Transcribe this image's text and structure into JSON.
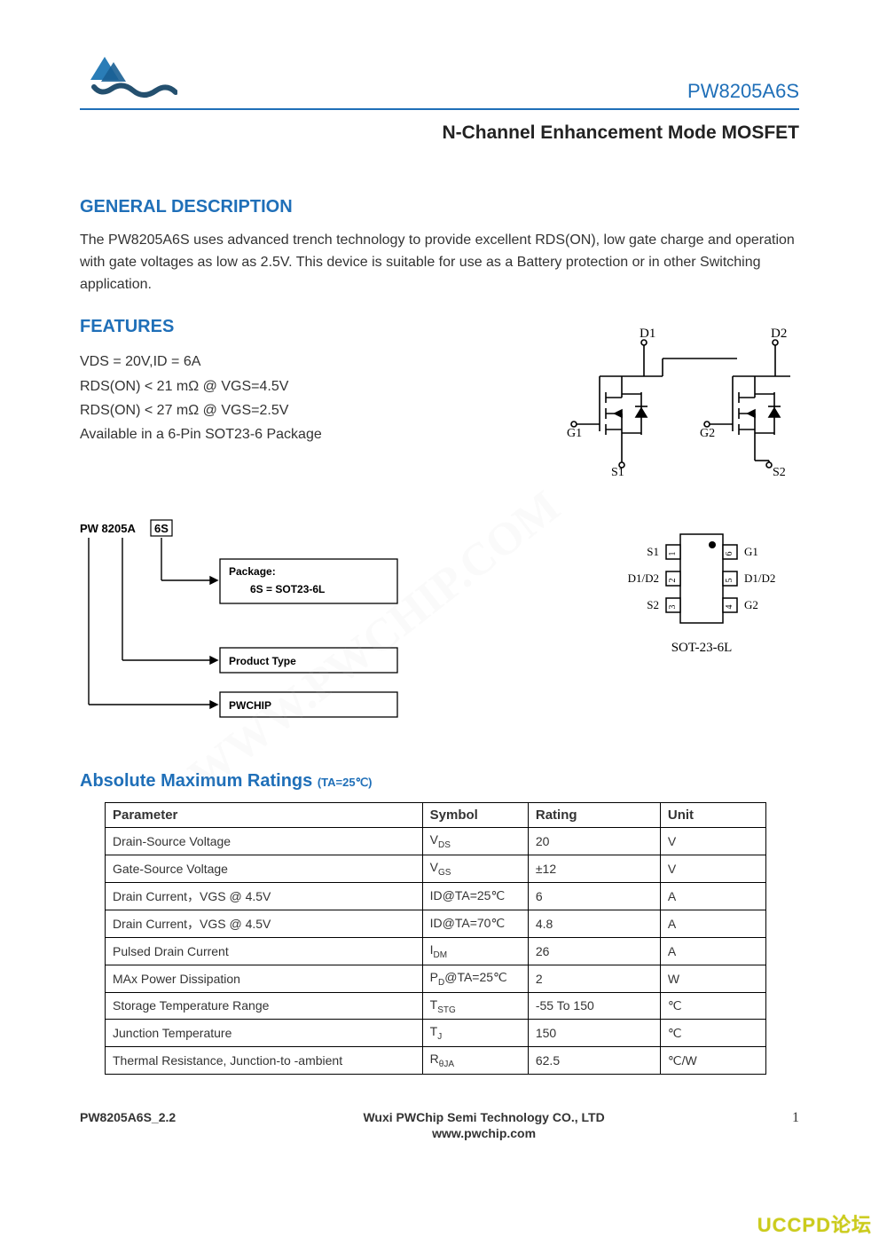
{
  "header": {
    "part_number": "PW8205A6S",
    "logo_color_1": "#2a7db7",
    "logo_color_2": "#24506f"
  },
  "title": "N-Channel Enhancement Mode MOSFET",
  "general_description": {
    "heading": "GENERAL DESCRIPTION",
    "text": "The PW8205A6S uses advanced trench technology to provide excellent RDS(ON), low gate charge and operation with gate voltages as low as 2.5V. This device is suitable for use as a Battery protection or in other Switching application."
  },
  "features": {
    "heading": "FEATURES",
    "items": [
      "VDS = 20V,ID = 6A",
      "RDS(ON) < 21 mΩ @ VGS=4.5V",
      "RDS(ON) < 27 mΩ @ VGS=2.5V",
      "Available in a 6-Pin SOT23-6 Package"
    ]
  },
  "schematic": {
    "labels": {
      "d1": "D1",
      "d2": "D2",
      "g1": "G1",
      "g2": "G2",
      "s1": "S1",
      "s2": "S2"
    },
    "line_color": "#000000",
    "pin_circle_fill": "#ffffff",
    "pin_circle_stroke": "#000000"
  },
  "ordering": {
    "title_prefix": "PW 8205A",
    "title_suffix": "6S",
    "package_label": "Package:",
    "package_value": "6S = SOT23-6L",
    "product_type_label": "Product Type",
    "pwchip_label": "PWCHIP",
    "box_border_color": "#000000"
  },
  "package_pinout": {
    "left_pins": [
      {
        "num": "1",
        "label": "S1"
      },
      {
        "num": "2",
        "label": "D1/D2"
      },
      {
        "num": "3",
        "label": "S2"
      }
    ],
    "right_pins": [
      {
        "num": "6",
        "label": "G1"
      },
      {
        "num": "5",
        "label": "D1/D2"
      },
      {
        "num": "4",
        "label": "G2"
      }
    ],
    "footprint_label": "SOT-23-6L",
    "outline_color": "#000000"
  },
  "abs_max": {
    "heading": "Absolute Maximum Ratings",
    "conditions": "(TA=25℃)",
    "columns": [
      "Parameter",
      "Symbol",
      "Rating",
      "Unit"
    ],
    "rows": [
      {
        "param": "Drain-Source Voltage",
        "symbol_main": "V",
        "symbol_sub": "DS",
        "rating": "20",
        "unit": "V"
      },
      {
        "param": "Gate-Source Voltage",
        "symbol_main": "V",
        "symbol_sub": "GS",
        "rating": "±12",
        "unit": "V"
      },
      {
        "param": "Drain Current，VGS @ 4.5V",
        "symbol_main": "ID@TA=25℃",
        "symbol_sub": "",
        "rating": "6",
        "unit": "A"
      },
      {
        "param": "Drain Current，VGS @ 4.5V",
        "symbol_main": "ID@TA=70℃",
        "symbol_sub": "",
        "rating": "4.8",
        "unit": "A"
      },
      {
        "param": "Pulsed Drain Current",
        "symbol_main": "I",
        "symbol_sub": "DM",
        "rating": "26",
        "unit": "A"
      },
      {
        "param": "MAx Power Dissipation",
        "symbol_main": "P",
        "symbol_sub": "D",
        "symbol_tail": "@TA=25℃",
        "rating": "2",
        "unit": "W"
      },
      {
        "param": "Storage Temperature Range",
        "symbol_main": "T",
        "symbol_sub": "STG",
        "rating": "-55 To 150",
        "unit": "℃"
      },
      {
        "param": "Junction Temperature",
        "symbol_main": "T",
        "symbol_sub": "J",
        "rating": "150",
        "unit": "℃"
      },
      {
        "param": "Thermal Resistance, Junction-to -ambient",
        "symbol_main": "R",
        "symbol_sub": "θJA",
        "rating": "62.5",
        "unit": "℃/W"
      }
    ],
    "border_color": "#000000"
  },
  "footer": {
    "left": "PW8205A6S_2.2",
    "center_line1": "Wuxi PWChip Semi Technology CO., LTD",
    "center_line2": "www.pwchip.com",
    "page_number": "1"
  },
  "watermark": {
    "corner_text": "UCCPD论坛",
    "corner_color": "rgba(200,200,0,0.75)",
    "diagonal_text": "WWW.PWCHIP.COM",
    "diagonal_color": "#dddddd"
  },
  "colors": {
    "accent": "#1f6fb8",
    "text": "#333333",
    "rule": "#1f6fb8"
  }
}
